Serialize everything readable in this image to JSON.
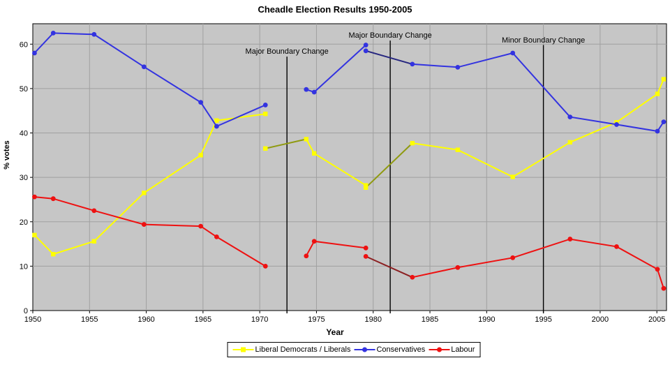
{
  "chart_data": {
    "type": "line",
    "title": "Cheadle Election Results 1950-2005",
    "xlabel": "Year",
    "ylabel": "% votes",
    "xlim": [
      1950,
      2005.85
    ],
    "ylim": [
      0,
      64.6
    ],
    "xticks": [
      1950,
      1955,
      1960,
      1965,
      1970,
      1975,
      1980,
      1985,
      1990,
      1995,
      2000,
      2005
    ],
    "yticks": [
      0,
      10,
      20,
      30,
      40,
      50,
      60
    ],
    "grid": true,
    "legend_position": "bottom",
    "colors": {
      "plot_background": "#c6c6c6",
      "gridline": "#a0a0a0",
      "axis": "#000000",
      "boundary_line": "#000000"
    },
    "annotations": [
      {
        "label": "Major Boundary Change",
        "x": 1972.4,
        "label_y": 58.5,
        "line_top": 57.2
      },
      {
        "label": "Major Boundary Change",
        "x": 1981.5,
        "label_y": 62.1,
        "line_top": 60.8
      },
      {
        "label": "Minor Boundary Change",
        "x": 1995.0,
        "label_y": 61.0,
        "line_top": 59.8
      }
    ],
    "series": [
      {
        "name": "Liberal Democrats / Liberals",
        "color": "#ffff00",
        "notional_color": "#8f9a10",
        "marker": "square",
        "segments": [
          {
            "style": "actual",
            "points": [
              [
                1950.15,
                17.0
              ],
              [
                1951.8,
                12.7
              ],
              [
                1955.4,
                15.6
              ],
              [
                1959.8,
                26.5
              ],
              [
                1964.8,
                35.0
              ],
              [
                1966.2,
                42.8
              ],
              [
                1970.5,
                44.3
              ]
            ]
          },
          {
            "style": "notional",
            "points": [
              [
                1970.5,
                36.5
              ],
              [
                1974.1,
                38.6
              ]
            ]
          },
          {
            "style": "actual",
            "points": [
              [
                1974.1,
                38.6
              ],
              [
                1974.8,
                35.4
              ],
              [
                1979.35,
                28.2
              ]
            ]
          },
          {
            "style": "notional",
            "points": [
              [
                1979.35,
                27.7
              ],
              [
                1983.45,
                37.7
              ]
            ]
          },
          {
            "style": "actual",
            "points": [
              [
                1983.45,
                37.7
              ],
              [
                1987.45,
                36.2
              ],
              [
                1992.3,
                30.1
              ],
              [
                1997.35,
                37.9
              ],
              [
                2001.45,
                42.4
              ],
              [
                2005.05,
                48.8
              ],
              [
                2005.6,
                52.1
              ]
            ]
          }
        ]
      },
      {
        "name": "Conservatives",
        "color": "#3333e0",
        "notional_color": "#26267f",
        "marker": "circle",
        "segments": [
          {
            "style": "actual",
            "points": [
              [
                1950.15,
                58.0
              ],
              [
                1951.8,
                62.5
              ],
              [
                1955.4,
                62.2
              ],
              [
                1959.8,
                54.9
              ],
              [
                1964.8,
                46.9
              ],
              [
                1966.2,
                41.5
              ],
              [
                1970.5,
                46.3
              ]
            ]
          },
          {
            "style": "actual",
            "points": [
              [
                1974.1,
                49.8
              ],
              [
                1974.8,
                49.2
              ],
              [
                1979.35,
                59.8
              ]
            ]
          },
          {
            "style": "notional",
            "points": [
              [
                1979.35,
                58.5
              ],
              [
                1983.45,
                55.5
              ]
            ]
          },
          {
            "style": "actual",
            "points": [
              [
                1983.45,
                55.5
              ],
              [
                1987.45,
                54.8
              ],
              [
                1992.3,
                58.0
              ],
              [
                1997.35,
                43.6
              ],
              [
                2001.45,
                41.9
              ],
              [
                2005.05,
                40.4
              ],
              [
                2005.6,
                42.5
              ]
            ]
          }
        ]
      },
      {
        "name": "Labour",
        "color": "#ee1111",
        "notional_color": "#8c2022",
        "marker": "circle",
        "segments": [
          {
            "style": "actual",
            "points": [
              [
                1950.15,
                25.6
              ],
              [
                1951.8,
                25.2
              ],
              [
                1955.4,
                22.5
              ],
              [
                1959.8,
                19.4
              ],
              [
                1964.8,
                19.0
              ],
              [
                1966.2,
                16.6
              ],
              [
                1970.5,
                10.0
              ]
            ]
          },
          {
            "style": "actual",
            "points": [
              [
                1974.1,
                12.3
              ],
              [
                1974.8,
                15.6
              ],
              [
                1979.35,
                14.1
              ]
            ]
          },
          {
            "style": "notional",
            "points": [
              [
                1979.35,
                12.2
              ],
              [
                1983.45,
                7.5
              ]
            ]
          },
          {
            "style": "actual",
            "points": [
              [
                1983.45,
                7.5
              ],
              [
                1987.45,
                9.7
              ],
              [
                1992.3,
                11.9
              ],
              [
                1997.35,
                16.1
              ],
              [
                2001.45,
                14.4
              ],
              [
                2005.05,
                9.3
              ],
              [
                2005.6,
                5.0
              ]
            ]
          }
        ]
      }
    ]
  }
}
